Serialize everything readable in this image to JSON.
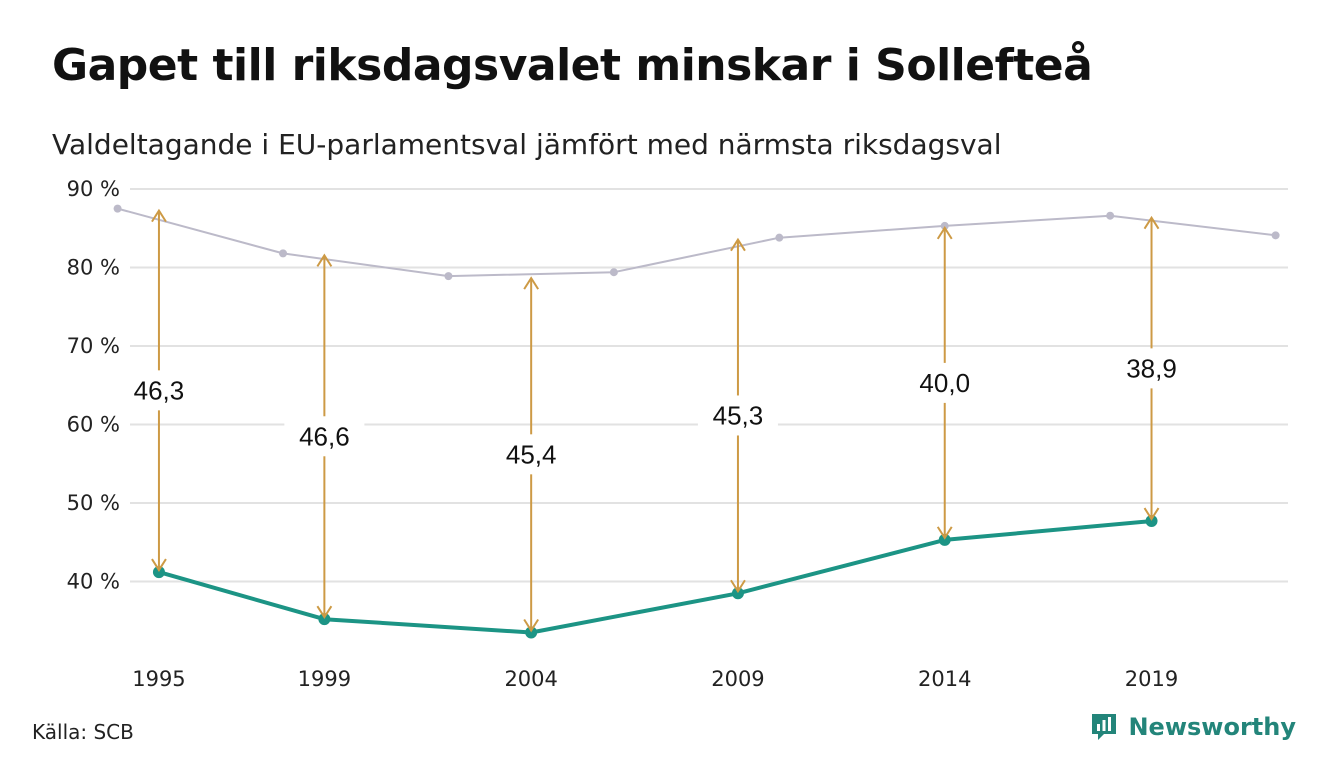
{
  "title": "Gapet till riksdagsvalet minskar i Sollefteå",
  "subtitle": "Valdeltagande i EU-parlamentsval jämfört med närmsta riksdagsval",
  "source": "Källa: SCB",
  "brand": "Newsworthy",
  "colors": {
    "eu": "#1c9485",
    "riksdag": "#bcbac9",
    "arrow": "#cd9a45",
    "grid": "#e2e2e2",
    "brand": "#23857a"
  },
  "chart_data": {
    "type": "line",
    "ylim": [
      30,
      90
    ],
    "xlim": [
      1994.3,
      2022.3
    ],
    "yticks": [
      40,
      50,
      60,
      70,
      80,
      90
    ],
    "ytick_labels": [
      "40 %",
      "50 %",
      "60 %",
      "70 %",
      "80 %",
      "90 %"
    ],
    "xticks": [
      1995,
      1999,
      2004,
      2009,
      2014,
      2019
    ],
    "xtick_labels": [
      "1995",
      "1999",
      "2004",
      "2009",
      "2014",
      "2019"
    ],
    "grid": true,
    "series": [
      {
        "key": "riksdag",
        "points": [
          [
            1994,
            87.5
          ],
          [
            1998,
            81.8
          ],
          [
            2002,
            78.9
          ],
          [
            2006,
            79.4
          ],
          [
            2010,
            83.8
          ],
          [
            2014,
            85.3
          ],
          [
            2018,
            86.6
          ],
          [
            2022,
            84.1
          ]
        ]
      },
      {
        "key": "eu",
        "points": [
          [
            1995,
            41.2
          ],
          [
            1999,
            35.2
          ],
          [
            2004,
            33.5
          ],
          [
            2009,
            38.5
          ],
          [
            2014,
            45.3
          ],
          [
            2019,
            47.7
          ]
        ]
      }
    ],
    "gaps": [
      {
        "x": 1995,
        "low": 41.2,
        "high": 87.5,
        "label": "46,3"
      },
      {
        "x": 1999,
        "low": 35.2,
        "high": 81.8,
        "label": "46,6"
      },
      {
        "x": 2004,
        "low": 33.5,
        "high": 78.9,
        "label": "45,4"
      },
      {
        "x": 2009,
        "low": 38.5,
        "high": 83.8,
        "label": "45,3"
      },
      {
        "x": 2014,
        "low": 45.3,
        "high": 85.3,
        "label": "40,0"
      },
      {
        "x": 2019,
        "low": 47.7,
        "high": 86.6,
        "label": "38,9"
      }
    ]
  }
}
